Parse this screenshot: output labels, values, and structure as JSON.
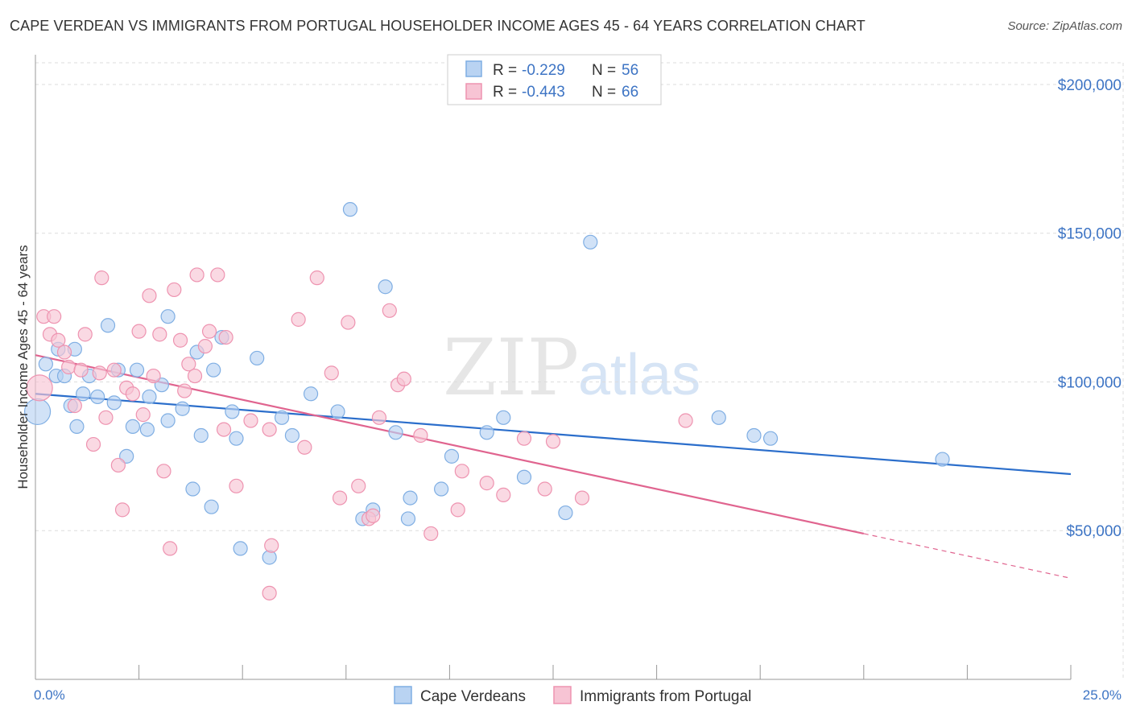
{
  "title": "CAPE VERDEAN VS IMMIGRANTS FROM PORTUGAL HOUSEHOLDER INCOME AGES 45 - 64 YEARS CORRELATION CHART",
  "source": "Source: ZipAtlas.com",
  "watermark": {
    "zip": "ZIP",
    "atlas": "atlas"
  },
  "legend": {
    "r_label": "R =",
    "n_label": "N =",
    "rows": [
      {
        "r": "-0.229",
        "n": "56"
      },
      {
        "r": "-0.443",
        "n": "66"
      }
    ]
  },
  "colors": {
    "blue_fill": "#b9d3f2",
    "blue_stroke": "#7faee3",
    "blue_line": "#2b6ecb",
    "pink_fill": "#f7c4d4",
    "pink_stroke": "#ee93b0",
    "pink_line": "#e0648f",
    "tick_text": "#3d74c4",
    "grid": "#dddddd"
  },
  "chart_data": {
    "type": "scatter",
    "xlabel": "",
    "ylabel": "Householder Income Ages 45 - 64 years",
    "xlim": [
      0,
      25
    ],
    "ylim": [
      0,
      210000
    ],
    "x_tick_labels": [
      "0.0%",
      "25.0%"
    ],
    "y_ticks": [
      50000,
      100000,
      150000,
      200000
    ],
    "y_tick_labels": [
      "$50,000",
      "$100,000",
      "$150,000",
      "$200,000"
    ],
    "grid": "horizontal dashed",
    "legend_placement": "top-center",
    "series": [
      {
        "name": "Cape Verdeans",
        "trend": {
          "x": [
            0,
            25
          ],
          "y": [
            96000,
            69000
          ]
        },
        "points": [
          {
            "x": 0.05,
            "y": 90000,
            "big": true
          },
          {
            "x": 0.25,
            "y": 106000
          },
          {
            "x": 0.5,
            "y": 102000
          },
          {
            "x": 0.55,
            "y": 111000
          },
          {
            "x": 0.7,
            "y": 102000
          },
          {
            "x": 0.85,
            "y": 92000
          },
          {
            "x": 0.95,
            "y": 111000
          },
          {
            "x": 1.0,
            "y": 85000
          },
          {
            "x": 1.15,
            "y": 96000
          },
          {
            "x": 1.3,
            "y": 102000
          },
          {
            "x": 1.5,
            "y": 95000
          },
          {
            "x": 1.75,
            "y": 119000
          },
          {
            "x": 1.9,
            "y": 93000
          },
          {
            "x": 2.0,
            "y": 104000
          },
          {
            "x": 2.2,
            "y": 75000
          },
          {
            "x": 2.35,
            "y": 85000
          },
          {
            "x": 2.45,
            "y": 104000
          },
          {
            "x": 2.7,
            "y": 84000
          },
          {
            "x": 2.75,
            "y": 95000
          },
          {
            "x": 3.05,
            "y": 99000
          },
          {
            "x": 3.2,
            "y": 87000
          },
          {
            "x": 3.2,
            "y": 122000
          },
          {
            "x": 3.55,
            "y": 91000
          },
          {
            "x": 3.8,
            "y": 64000
          },
          {
            "x": 3.9,
            "y": 110000
          },
          {
            "x": 4.0,
            "y": 82000
          },
          {
            "x": 4.25,
            "y": 58000
          },
          {
            "x": 4.3,
            "y": 104000
          },
          {
            "x": 4.5,
            "y": 115000
          },
          {
            "x": 4.75,
            "y": 90000
          },
          {
            "x": 4.85,
            "y": 81000
          },
          {
            "x": 4.95,
            "y": 44000
          },
          {
            "x": 5.35,
            "y": 108000
          },
          {
            "x": 5.65,
            "y": 41000
          },
          {
            "x": 5.95,
            "y": 88000
          },
          {
            "x": 6.2,
            "y": 82000
          },
          {
            "x": 6.65,
            "y": 96000
          },
          {
            "x": 7.3,
            "y": 90000
          },
          {
            "x": 7.6,
            "y": 158000
          },
          {
            "x": 7.9,
            "y": 54000
          },
          {
            "x": 8.15,
            "y": 57000
          },
          {
            "x": 8.45,
            "y": 132000
          },
          {
            "x": 8.7,
            "y": 83000
          },
          {
            "x": 9.0,
            "y": 54000
          },
          {
            "x": 9.05,
            "y": 61000
          },
          {
            "x": 9.8,
            "y": 64000
          },
          {
            "x": 10.05,
            "y": 75000
          },
          {
            "x": 10.9,
            "y": 83000
          },
          {
            "x": 11.3,
            "y": 88000
          },
          {
            "x": 11.8,
            "y": 68000
          },
          {
            "x": 12.8,
            "y": 56000
          },
          {
            "x": 13.4,
            "y": 147000
          },
          {
            "x": 16.5,
            "y": 88000
          },
          {
            "x": 17.35,
            "y": 82000
          },
          {
            "x": 17.75,
            "y": 81000
          },
          {
            "x": 21.9,
            "y": 74000
          }
        ]
      },
      {
        "name": "Immigrants from Portugal",
        "trend": {
          "x": [
            0,
            20
          ],
          "y": [
            109000,
            49000
          ]
        },
        "trend_dashed": {
          "x": [
            20,
            25
          ],
          "y": [
            49000,
            34000
          ]
        },
        "points": [
          {
            "x": 0.1,
            "y": 98000,
            "big": true
          },
          {
            "x": 0.2,
            "y": 122000
          },
          {
            "x": 0.35,
            "y": 116000
          },
          {
            "x": 0.45,
            "y": 122000
          },
          {
            "x": 0.55,
            "y": 114000
          },
          {
            "x": 0.7,
            "y": 110000
          },
          {
            "x": 0.8,
            "y": 105000
          },
          {
            "x": 0.95,
            "y": 92000
          },
          {
            "x": 1.1,
            "y": 104000
          },
          {
            "x": 1.2,
            "y": 116000
          },
          {
            "x": 1.4,
            "y": 79000
          },
          {
            "x": 1.55,
            "y": 103000
          },
          {
            "x": 1.6,
            "y": 135000
          },
          {
            "x": 1.7,
            "y": 88000
          },
          {
            "x": 1.9,
            "y": 104000
          },
          {
            "x": 2.0,
            "y": 72000
          },
          {
            "x": 2.1,
            "y": 57000
          },
          {
            "x": 2.2,
            "y": 98000
          },
          {
            "x": 2.35,
            "y": 96000
          },
          {
            "x": 2.5,
            "y": 117000
          },
          {
            "x": 2.6,
            "y": 89000
          },
          {
            "x": 2.75,
            "y": 129000
          },
          {
            "x": 2.85,
            "y": 102000
          },
          {
            "x": 3.0,
            "y": 116000
          },
          {
            "x": 3.1,
            "y": 70000
          },
          {
            "x": 3.25,
            "y": 44000
          },
          {
            "x": 3.35,
            "y": 131000
          },
          {
            "x": 3.5,
            "y": 114000
          },
          {
            "x": 3.6,
            "y": 97000
          },
          {
            "x": 3.7,
            "y": 106000
          },
          {
            "x": 3.85,
            "y": 102000
          },
          {
            "x": 3.9,
            "y": 136000
          },
          {
            "x": 4.1,
            "y": 112000
          },
          {
            "x": 4.2,
            "y": 117000
          },
          {
            "x": 4.4,
            "y": 136000
          },
          {
            "x": 4.55,
            "y": 84000
          },
          {
            "x": 4.6,
            "y": 115000
          },
          {
            "x": 4.85,
            "y": 65000
          },
          {
            "x": 5.2,
            "y": 87000
          },
          {
            "x": 5.65,
            "y": 29000
          },
          {
            "x": 5.7,
            "y": 45000
          },
          {
            "x": 5.65,
            "y": 84000
          },
          {
            "x": 6.35,
            "y": 121000
          },
          {
            "x": 6.5,
            "y": 78000
          },
          {
            "x": 6.8,
            "y": 135000
          },
          {
            "x": 7.15,
            "y": 103000
          },
          {
            "x": 7.35,
            "y": 61000
          },
          {
            "x": 7.55,
            "y": 120000
          },
          {
            "x": 7.8,
            "y": 65000
          },
          {
            "x": 8.05,
            "y": 54000
          },
          {
            "x": 8.15,
            "y": 55000
          },
          {
            "x": 8.3,
            "y": 88000
          },
          {
            "x": 8.55,
            "y": 124000
          },
          {
            "x": 8.75,
            "y": 99000
          },
          {
            "x": 8.9,
            "y": 101000
          },
          {
            "x": 9.3,
            "y": 82000
          },
          {
            "x": 9.55,
            "y": 49000
          },
          {
            "x": 10.2,
            "y": 57000
          },
          {
            "x": 10.9,
            "y": 66000
          },
          {
            "x": 11.3,
            "y": 62000
          },
          {
            "x": 11.8,
            "y": 81000
          },
          {
            "x": 12.3,
            "y": 64000
          },
          {
            "x": 12.5,
            "y": 80000
          },
          {
            "x": 13.2,
            "y": 61000
          },
          {
            "x": 15.7,
            "y": 87000
          },
          {
            "x": 10.3,
            "y": 70000
          }
        ]
      }
    ]
  }
}
